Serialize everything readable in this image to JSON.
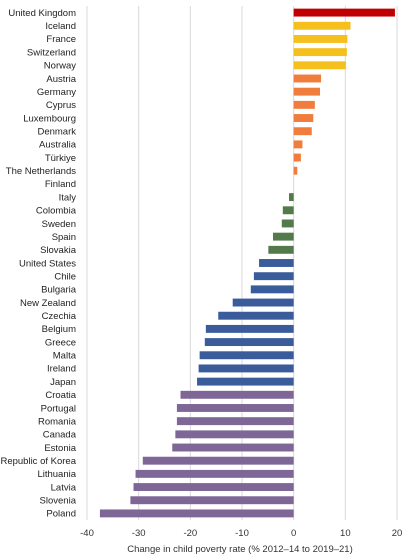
{
  "chart_data": {
    "type": "bar",
    "orientation": "horizontal",
    "xlabel": "Change in child poverty rate (% 2012–14 to 2019–21)",
    "xlim": [
      -40,
      20
    ],
    "xticks": [
      -40,
      -30,
      -20,
      -10,
      0,
      10,
      20
    ],
    "grid": true,
    "categories": [
      "United Kingdom",
      "Iceland",
      "France",
      "Switzerland",
      "Norway",
      "Austria",
      "Germany",
      "Cyprus",
      "Luxembourg",
      "Denmark",
      "Australia",
      "Türkiye",
      "The Netherlands",
      "Finland",
      "Italy",
      "Colombia",
      "Sweden",
      "Spain",
      "Slovakia",
      "United States",
      "Chile",
      "Bulgaria",
      "New Zealand",
      "Czechia",
      "Belgium",
      "Greece",
      "Malta",
      "Ireland",
      "Japan",
      "Croatia",
      "Portugal",
      "Romania",
      "Canada",
      "Estonia",
      "Republic of Korea",
      "Lithuania",
      "Latvia",
      "Slovenia",
      "Poland"
    ],
    "values": [
      19.6,
      11.0,
      10.4,
      10.3,
      10.1,
      5.3,
      5.1,
      4.1,
      3.8,
      3.5,
      1.7,
      1.4,
      0.7,
      0.0,
      -0.9,
      -2.1,
      -2.3,
      -4.0,
      -4.9,
      -6.7,
      -7.7,
      -8.3,
      -11.8,
      -14.6,
      -17.0,
      -17.2,
      -18.2,
      -18.4,
      -18.7,
      -21.9,
      -22.6,
      -22.6,
      -22.9,
      -23.5,
      -29.2,
      -30.6,
      -31.0,
      -31.6,
      -37.5
    ],
    "group_colors": [
      "#c00000",
      "#f5bf1e",
      "#f5bf1e",
      "#f5bf1e",
      "#f5bf1e",
      "#f07d3c",
      "#f07d3c",
      "#f07d3c",
      "#f07d3c",
      "#f07d3c",
      "#f07d3c",
      "#f07d3c",
      "#f07d3c",
      "#f07d3c",
      "#537a4a",
      "#537a4a",
      "#537a4a",
      "#537a4a",
      "#537a4a",
      "#3a5c9b",
      "#3a5c9b",
      "#3a5c9b",
      "#3a5c9b",
      "#3a5c9b",
      "#3a5c9b",
      "#3a5c9b",
      "#3a5c9b",
      "#3a5c9b",
      "#3a5c9b",
      "#7e6796",
      "#7e6796",
      "#7e6796",
      "#7e6796",
      "#7e6796",
      "#7e6796",
      "#7e6796",
      "#7e6796",
      "#7e6796",
      "#7e6796"
    ]
  }
}
